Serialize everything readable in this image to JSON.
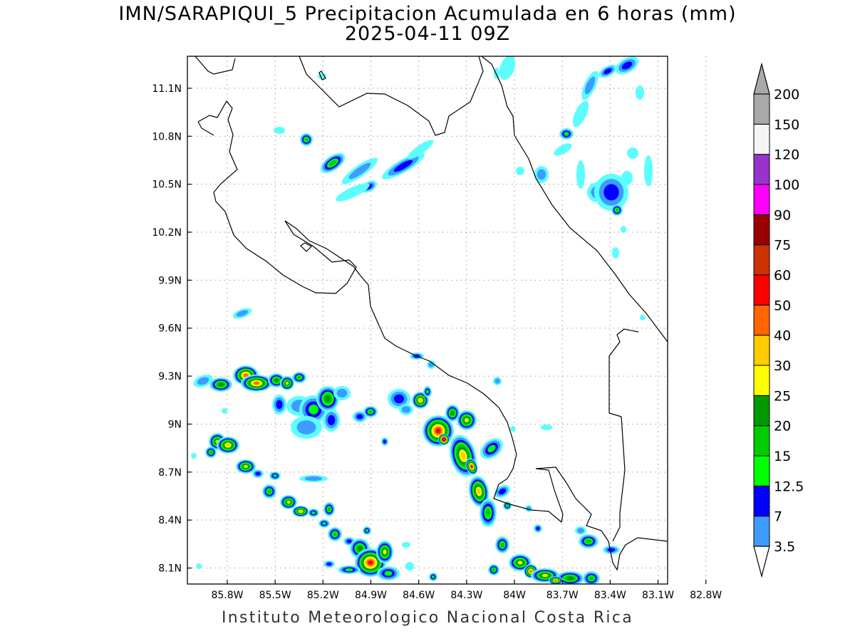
{
  "title": {
    "line1": "IMN/SARAPIQUI_5 Precipitacion Acumulada en 6 horas (mm)",
    "line2": "2025-04-11 09Z"
  },
  "footer": "Instituto Meteorologico Nacional Costa Rica",
  "map": {
    "lon_ticks": [
      {
        "value": -85.8,
        "label": "85.8W"
      },
      {
        "value": -85.5,
        "label": "85.5W"
      },
      {
        "value": -85.2,
        "label": "85.2W"
      },
      {
        "value": -84.9,
        "label": "84.9W"
      },
      {
        "value": -84.6,
        "label": "84.6W"
      },
      {
        "value": -84.3,
        "label": "84.3W"
      },
      {
        "value": -84.0,
        "label": "84W"
      },
      {
        "value": -83.7,
        "label": "83.7W"
      },
      {
        "value": -83.4,
        "label": "83.4W"
      },
      {
        "value": -83.1,
        "label": "83.1W"
      },
      {
        "value": -82.8,
        "label": "82.8W"
      }
    ],
    "lat_ticks": [
      {
        "value": 8.1,
        "label": "8.1N"
      },
      {
        "value": 8.4,
        "label": "8.4N"
      },
      {
        "value": 8.7,
        "label": "8.7N"
      },
      {
        "value": 9.0,
        "label": "9N"
      },
      {
        "value": 9.3,
        "label": "9.3N"
      },
      {
        "value": 9.6,
        "label": "9.6N"
      },
      {
        "value": 9.9,
        "label": "9.9N"
      },
      {
        "value": 10.2,
        "label": "10.2N"
      },
      {
        "value": 10.5,
        "label": "10.5N"
      },
      {
        "value": 10.8,
        "label": "10.8N"
      },
      {
        "value": 11.1,
        "label": "11.1N"
      }
    ],
    "lon_range": [
      -86.05,
      -83.04
    ],
    "lat_range": [
      8.0,
      11.3
    ]
  },
  "colorbar": {
    "levels": [
      "3.5",
      "7",
      "12.5",
      "15",
      "20",
      "25",
      "30",
      "40",
      "50",
      "60",
      "75",
      "90",
      "100",
      "120",
      "150",
      "200"
    ],
    "colors": [
      "#5cfdfd",
      "#3f9cff",
      "#0000ff",
      "#00ff00",
      "#00cc00",
      "#009900",
      "#ffff00",
      "#ffcc00",
      "#ff6600",
      "#ff0000",
      "#cc3300",
      "#990000",
      "#ff00ff",
      "#9933cc",
      "#f5f5f5",
      "#a9a9a9"
    ]
  }
}
